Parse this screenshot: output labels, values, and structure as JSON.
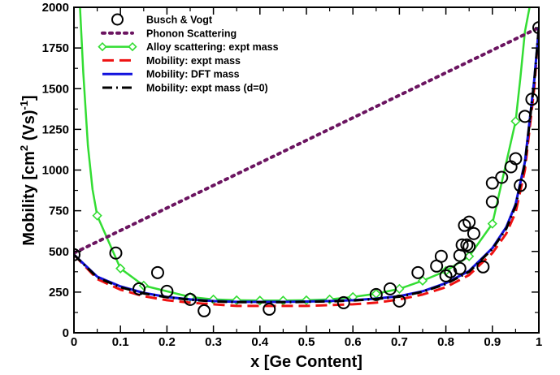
{
  "chart_data": {
    "type": "line",
    "xlabel": "x [Ge Content]",
    "ylabel_main": "Mobility [cm",
    "ylabel_sup1": "2",
    "ylabel_mid": " (Vs)",
    "ylabel_sup2": "-1",
    "ylabel_end": "]",
    "xlim": [
      0,
      1
    ],
    "ylim": [
      0,
      2000
    ],
    "x_ticks": [
      0,
      0.1,
      0.2,
      0.3,
      0.4,
      0.5,
      0.6,
      0.7,
      0.8,
      0.9,
      1
    ],
    "x_tick_labels": [
      "0",
      "0.1",
      "0.2",
      "0.3",
      "0.4",
      "0.5",
      "0.6",
      "0.7",
      "0.8",
      "0.9",
      "1"
    ],
    "y_ticks": [
      0,
      250,
      500,
      750,
      1000,
      1250,
      1500,
      1750,
      2000
    ],
    "y_tick_labels": [
      "0",
      "250",
      "500",
      "750",
      "1000",
      "1250",
      "1500",
      "1750",
      "2000"
    ],
    "legend_position": "top-center",
    "series": [
      {
        "name": "Busch & Vogt",
        "style": "markers-circle",
        "color": "#000000",
        "x": [
          0.0,
          0.09,
          0.14,
          0.18,
          0.2,
          0.25,
          0.28,
          0.42,
          0.58,
          0.65,
          0.68,
          0.7,
          0.74,
          0.78,
          0.79,
          0.8,
          0.81,
          0.83,
          0.83,
          0.835,
          0.84,
          0.845,
          0.85,
          0.85,
          0.86,
          0.88,
          0.9,
          0.9,
          0.92,
          0.94,
          0.95,
          0.96,
          0.97,
          0.985,
          1.0
        ],
        "y": [
          480,
          490,
          270,
          370,
          255,
          205,
          135,
          145,
          185,
          235,
          270,
          195,
          370,
          410,
          470,
          350,
          375,
          395,
          475,
          540,
          660,
          540,
          680,
          530,
          610,
          405,
          805,
          920,
          955,
          1020,
          1070,
          905,
          1330,
          1435,
          1875
        ]
      },
      {
        "name": "Phonon Scattering",
        "style": "dotted",
        "color": "#6b1460",
        "x": [
          0,
          1
        ],
        "y": [
          490,
          1875
        ]
      },
      {
        "name": "Alloy scattering: expt mass",
        "style": "line-diamond",
        "color": "#33dd33",
        "x": [
          0.013,
          0.02,
          0.03,
          0.04,
          0.05,
          0.1,
          0.15,
          0.25,
          0.3,
          0.35,
          0.4,
          0.45,
          0.5,
          0.55,
          0.6,
          0.65,
          0.7,
          0.75,
          0.8,
          0.85,
          0.9,
          0.95,
          0.96,
          0.97,
          0.98
        ],
        "y": [
          2000,
          1600,
          1150,
          880,
          720,
          395,
          290,
          220,
          205,
          200,
          198,
          198,
          200,
          205,
          220,
          240,
          270,
          320,
          380,
          470,
          670,
          1300,
          1560,
          1850,
          2000
        ],
        "marker_x": [
          0.05,
          0.1,
          0.15,
          0.25,
          0.3,
          0.35,
          0.4,
          0.45,
          0.5,
          0.55,
          0.6,
          0.65,
          0.7,
          0.75,
          0.8,
          0.85,
          0.9,
          0.95
        ],
        "marker_y": [
          720,
          395,
          290,
          220,
          205,
          200,
          198,
          198,
          200,
          205,
          220,
          240,
          270,
          320,
          380,
          470,
          670,
          1300
        ]
      },
      {
        "name": "Mobility: expt mass",
        "style": "dashed",
        "color": "#ee1111",
        "x": [
          0,
          0.05,
          0.1,
          0.15,
          0.2,
          0.25,
          0.3,
          0.35,
          0.4,
          0.45,
          0.5,
          0.55,
          0.6,
          0.65,
          0.7,
          0.75,
          0.8,
          0.85,
          0.9,
          0.93,
          0.95,
          0.97,
          0.99,
          1.0
        ],
        "y": [
          480,
          330,
          265,
          225,
          200,
          185,
          175,
          165,
          165,
          165,
          165,
          170,
          175,
          185,
          205,
          235,
          280,
          355,
          490,
          610,
          740,
          1000,
          1500,
          1875
        ]
      },
      {
        "name": "Mobility: DFT mass",
        "style": "solid",
        "color": "#1111dd",
        "x": [
          0,
          0.05,
          0.1,
          0.15,
          0.2,
          0.25,
          0.3,
          0.35,
          0.4,
          0.45,
          0.5,
          0.55,
          0.6,
          0.65,
          0.7,
          0.75,
          0.8,
          0.85,
          0.9,
          0.93,
          0.95,
          0.97,
          0.99,
          1.0
        ],
        "y": [
          480,
          345,
          285,
          245,
          220,
          205,
          195,
          190,
          190,
          190,
          192,
          195,
          200,
          210,
          225,
          255,
          305,
          380,
          520,
          650,
          790,
          1050,
          1550,
          1875
        ]
      },
      {
        "name": "Mobility: expt mass (d=0)",
        "style": "dashdot",
        "color": "#000000",
        "x": [
          0,
          0.05,
          0.1,
          0.15,
          0.2,
          0.25,
          0.3,
          0.35,
          0.4,
          0.45,
          0.5,
          0.55,
          0.6,
          0.65,
          0.7,
          0.75,
          0.8,
          0.85,
          0.9,
          0.93,
          0.95,
          0.97,
          0.99,
          1.0
        ],
        "y": [
          480,
          340,
          280,
          242,
          218,
          203,
          193,
          188,
          188,
          188,
          190,
          193,
          198,
          208,
          222,
          252,
          300,
          375,
          515,
          640,
          780,
          1040,
          1540,
          1875
        ]
      }
    ]
  }
}
